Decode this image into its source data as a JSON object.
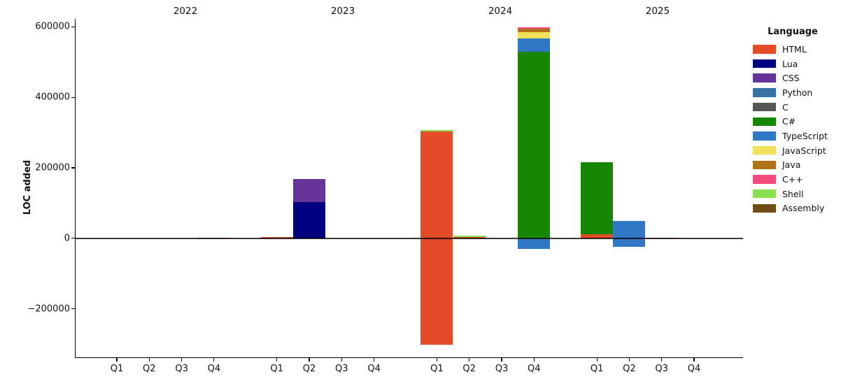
{
  "chart_data": {
    "type": "bar",
    "stacked": true,
    "ylabel": "LOC added",
    "yticks": [
      {
        "value": 600000,
        "label": "600000"
      },
      {
        "value": 400000,
        "label": "400000"
      },
      {
        "value": 200000,
        "label": "200000"
      },
      {
        "value": 0,
        "label": "0"
      },
      {
        "value": -200000,
        "label": "−200000"
      }
    ],
    "ylim": [
      -345000,
      630000
    ],
    "grid": false,
    "legend_position": "right",
    "legend": {
      "title": "Language",
      "items": [
        {
          "label": "HTML",
          "color": "#e34c26"
        },
        {
          "label": "Lua",
          "color": "#000080"
        },
        {
          "label": "CSS",
          "color": "#663399"
        },
        {
          "label": "Python",
          "color": "#3572A5"
        },
        {
          "label": "C",
          "color": "#555555"
        },
        {
          "label": "C#",
          "color": "#178600"
        },
        {
          "label": "TypeScript",
          "color": "#3178c6"
        },
        {
          "label": "JavaScript",
          "color": "#f1e05a"
        },
        {
          "label": "Java",
          "color": "#b07219"
        },
        {
          "label": "C++",
          "color": "#f34b7d"
        },
        {
          "label": "Shell",
          "color": "#89e051"
        },
        {
          "label": "Assembly",
          "color": "#6E4C13"
        }
      ]
    },
    "groups": [
      {
        "year": "2022",
        "quarters": [
          {
            "label": "Q1",
            "segments": []
          },
          {
            "label": "Q2",
            "segments": []
          },
          {
            "label": "Q3",
            "segments": []
          },
          {
            "label": "Q4",
            "segments": [
              {
                "language": "HTML",
                "value": 2000
              }
            ]
          }
        ]
      },
      {
        "year": "2023",
        "quarters": [
          {
            "label": "Q1",
            "segments": [
              {
                "language": "HTML",
                "value": 4000
              }
            ]
          },
          {
            "label": "Q2",
            "segments": [
              {
                "language": "Lua",
                "value": 102000
              },
              {
                "language": "CSS",
                "value": 66000
              }
            ]
          },
          {
            "label": "Q3",
            "segments": []
          },
          {
            "label": "Q4",
            "segments": []
          }
        ]
      },
      {
        "year": "2024",
        "quarters": [
          {
            "label": "Q1",
            "segments": [
              {
                "language": "HTML",
                "value": 304000
              },
              {
                "language": "Shell",
                "value": 4000
              },
              {
                "language": "HTML",
                "value": -302000
              }
            ]
          },
          {
            "label": "Q2",
            "segments": [
              {
                "language": "HTML",
                "value": 3000
              },
              {
                "language": "Shell",
                "value": 5000
              }
            ]
          },
          {
            "label": "Q3",
            "segments": []
          },
          {
            "label": "Q4",
            "segments": [
              {
                "language": "C#",
                "value": 530000
              },
              {
                "language": "TypeScript",
                "value": 38000
              },
              {
                "language": "JavaScript",
                "value": 16000
              },
              {
                "language": "Java",
                "value": 10000
              },
              {
                "language": "C++",
                "value": 5000
              },
              {
                "language": "TypeScript",
                "value": -31000
              }
            ]
          }
        ]
      },
      {
        "year": "2025",
        "quarters": [
          {
            "label": "Q1",
            "segments": [
              {
                "language": "HTML",
                "value": 12000
              },
              {
                "language": "C#",
                "value": 203000
              }
            ]
          },
          {
            "label": "Q2",
            "segments": [
              {
                "language": "TypeScript",
                "value": 50000
              },
              {
                "language": "TypeScript",
                "value": -25000
              }
            ]
          },
          {
            "label": "Q3",
            "segments": [
              {
                "language": "HTML",
                "value": 2000
              }
            ]
          },
          {
            "label": "Q4",
            "segments": []
          }
        ]
      }
    ]
  }
}
